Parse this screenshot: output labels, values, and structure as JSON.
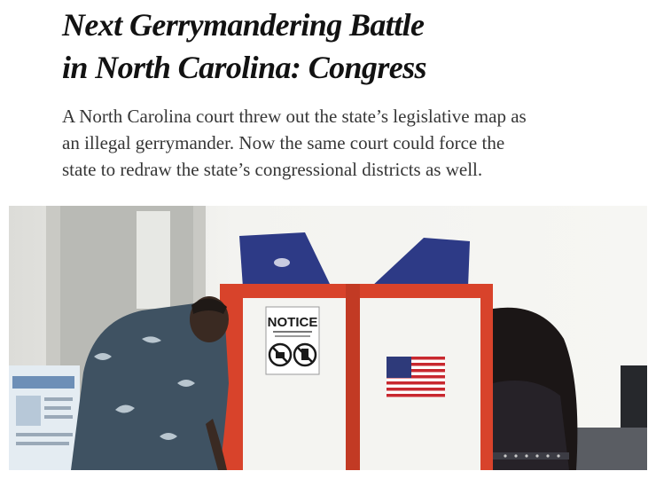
{
  "article": {
    "headline_lines": [
      "Next Gerrymandering Battle",
      "in North Carolina: Congress"
    ],
    "summary_lines": [
      "A North Carolina court threw out the state’s legislative map as",
      "an illegal gerrymander. Now the same court could force the",
      "state to redraw the state’s congressional districts as well."
    ]
  },
  "photo": {
    "notice_sign_text": "NOTICE",
    "colors": {
      "booth_frame": "#d8432b",
      "booth_panel": "#f4f4f1",
      "booth_top": "#2d3a86",
      "wall": "#f1f1ee",
      "shirt": "#3f5262"
    }
  }
}
